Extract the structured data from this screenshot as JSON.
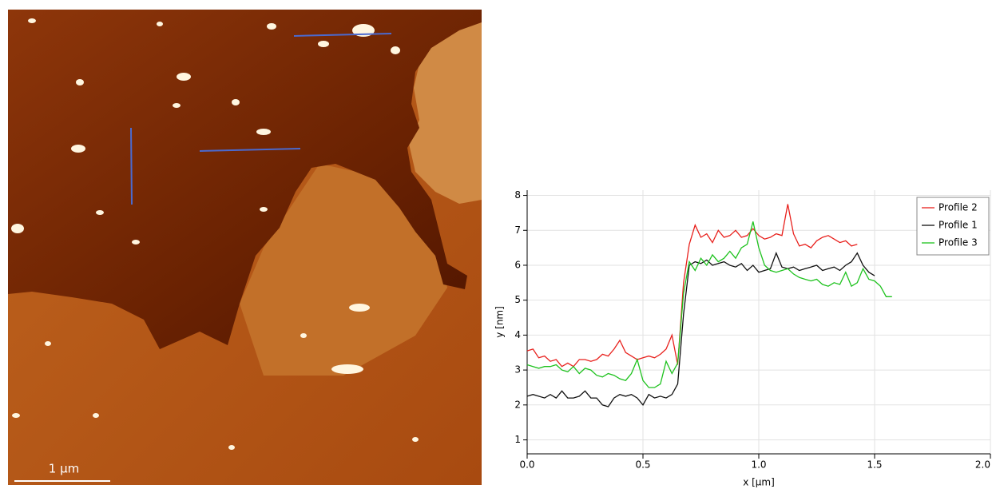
{
  "image": {
    "scale_bar_label": "1 µm"
  },
  "chart_data": {
    "type": "line",
    "xlabel": "x [µm]",
    "ylabel": "y [nm]",
    "x": [
      0,
      0.025,
      0.05,
      0.075,
      0.1,
      0.125,
      0.15,
      0.175,
      0.2,
      0.225,
      0.25,
      0.275,
      0.3,
      0.325,
      0.35,
      0.375,
      0.4,
      0.425,
      0.45,
      0.475,
      0.5,
      0.525,
      0.55,
      0.575,
      0.6,
      0.625,
      0.65,
      0.675,
      0.7,
      0.725,
      0.75,
      0.775,
      0.8,
      0.825,
      0.85,
      0.875,
      0.9,
      0.925,
      0.95,
      0.975,
      1.0,
      1.025,
      1.05,
      1.075,
      1.1,
      1.125,
      1.15,
      1.175,
      1.2,
      1.225,
      1.25,
      1.275,
      1.3,
      1.325,
      1.35,
      1.375,
      1.4,
      1.425,
      1.45,
      1.475,
      1.5,
      1.525,
      1.55,
      1.575
    ],
    "series": [
      {
        "name": "Profile 2",
        "color": "#e8201c",
        "values": [
          3.55,
          3.6,
          3.35,
          3.4,
          3.25,
          3.3,
          3.1,
          3.2,
          3.1,
          3.3,
          3.3,
          3.25,
          3.3,
          3.45,
          3.4,
          3.6,
          3.85,
          3.5,
          3.4,
          3.3,
          3.35,
          3.4,
          3.35,
          3.45,
          3.6,
          4.0,
          3.15,
          5.5,
          6.6,
          7.15,
          6.8,
          6.9,
          6.65,
          7.0,
          6.8,
          6.85,
          7.0,
          6.8,
          6.85,
          7.05,
          6.85,
          6.75,
          6.8,
          6.9,
          6.85,
          7.75,
          6.9,
          6.55,
          6.6,
          6.5,
          6.7,
          6.8,
          6.85,
          6.75,
          6.65,
          6.7,
          6.55,
          6.6,
          null,
          null,
          null,
          null,
          null,
          null
        ]
      },
      {
        "name": "Profile 1",
        "color": "#111111",
        "values": [
          2.25,
          2.3,
          2.25,
          2.2,
          2.3,
          2.2,
          2.4,
          2.2,
          2.2,
          2.25,
          2.4,
          2.2,
          2.2,
          2.0,
          1.95,
          2.2,
          2.3,
          2.25,
          2.3,
          2.2,
          2.0,
          2.3,
          2.2,
          2.25,
          2.2,
          2.3,
          2.6,
          4.6,
          6.0,
          6.1,
          6.05,
          6.15,
          6.0,
          6.05,
          6.1,
          6.0,
          5.95,
          6.05,
          5.85,
          6.0,
          5.8,
          5.85,
          5.9,
          6.35,
          5.95,
          5.9,
          5.95,
          5.85,
          5.9,
          5.95,
          6.0,
          5.85,
          5.9,
          5.95,
          5.85,
          6.0,
          6.1,
          6.35,
          6.0,
          5.8,
          5.7,
          null,
          null,
          null
        ]
      },
      {
        "name": "Profile 3",
        "color": "#1ec21e",
        "values": [
          3.15,
          3.1,
          3.05,
          3.1,
          3.1,
          3.15,
          3.0,
          2.95,
          3.1,
          2.9,
          3.05,
          3.0,
          2.85,
          2.8,
          2.9,
          2.85,
          2.75,
          2.7,
          2.9,
          3.3,
          2.7,
          2.5,
          2.5,
          2.6,
          3.25,
          2.9,
          3.2,
          5.2,
          6.1,
          5.85,
          6.2,
          6.0,
          6.3,
          6.1,
          6.2,
          6.4,
          6.2,
          6.5,
          6.6,
          7.25,
          6.5,
          6.0,
          5.85,
          5.8,
          5.85,
          5.9,
          5.75,
          5.65,
          5.6,
          5.55,
          5.6,
          5.45,
          5.4,
          5.5,
          5.45,
          5.8,
          5.4,
          5.5,
          5.9,
          5.6,
          5.55,
          5.4,
          5.1,
          5.1
        ]
      }
    ],
    "xlim": [
      0,
      2
    ],
    "ylim": [
      0.6,
      8.15
    ],
    "xticks": [
      {
        "value": 0,
        "label": "0.0"
      },
      0.5,
      {
        "value": 1,
        "label": "1.0"
      },
      1.5,
      {
        "value": 2,
        "label": "2.0"
      }
    ],
    "yticks": [
      1,
      2,
      3,
      4,
      5,
      6,
      7,
      8
    ],
    "grid": true,
    "legend": "upper right"
  }
}
